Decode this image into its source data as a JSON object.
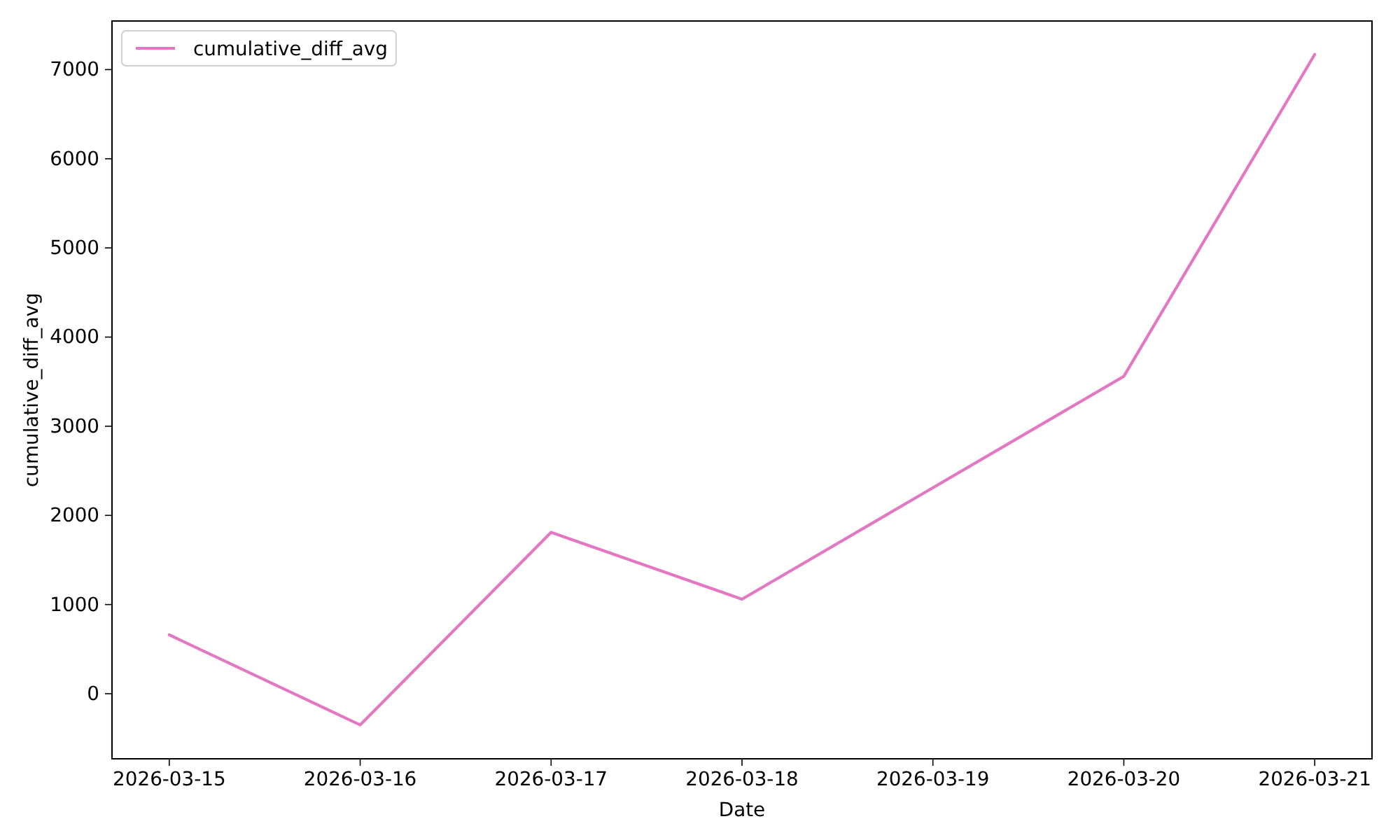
{
  "chart_data": {
    "type": "line",
    "xlabel": "Date",
    "ylabel": "cumulative_diff_avg",
    "x": [
      "2026-03-15",
      "2026-03-16",
      "2026-03-17",
      "2026-03-18",
      "2026-03-20",
      "2026-03-21"
    ],
    "series": [
      {
        "name": "cumulative_diff_avg",
        "color": "#e377c2",
        "values": [
          660,
          -350,
          1810,
          1060,
          3560,
          7170
        ]
      }
    ],
    "xlim": [
      "2026-03-14T16:48",
      "2026-03-21T07:12"
    ],
    "xticks": [
      "2026-03-15",
      "2026-03-16",
      "2026-03-17",
      "2026-03-18",
      "2026-03-19",
      "2026-03-20",
      "2026-03-21"
    ],
    "ylim": [
      -730,
      7545
    ],
    "yticks": [
      0,
      1000,
      2000,
      3000,
      4000,
      5000,
      6000,
      7000
    ],
    "legend": "top left"
  }
}
